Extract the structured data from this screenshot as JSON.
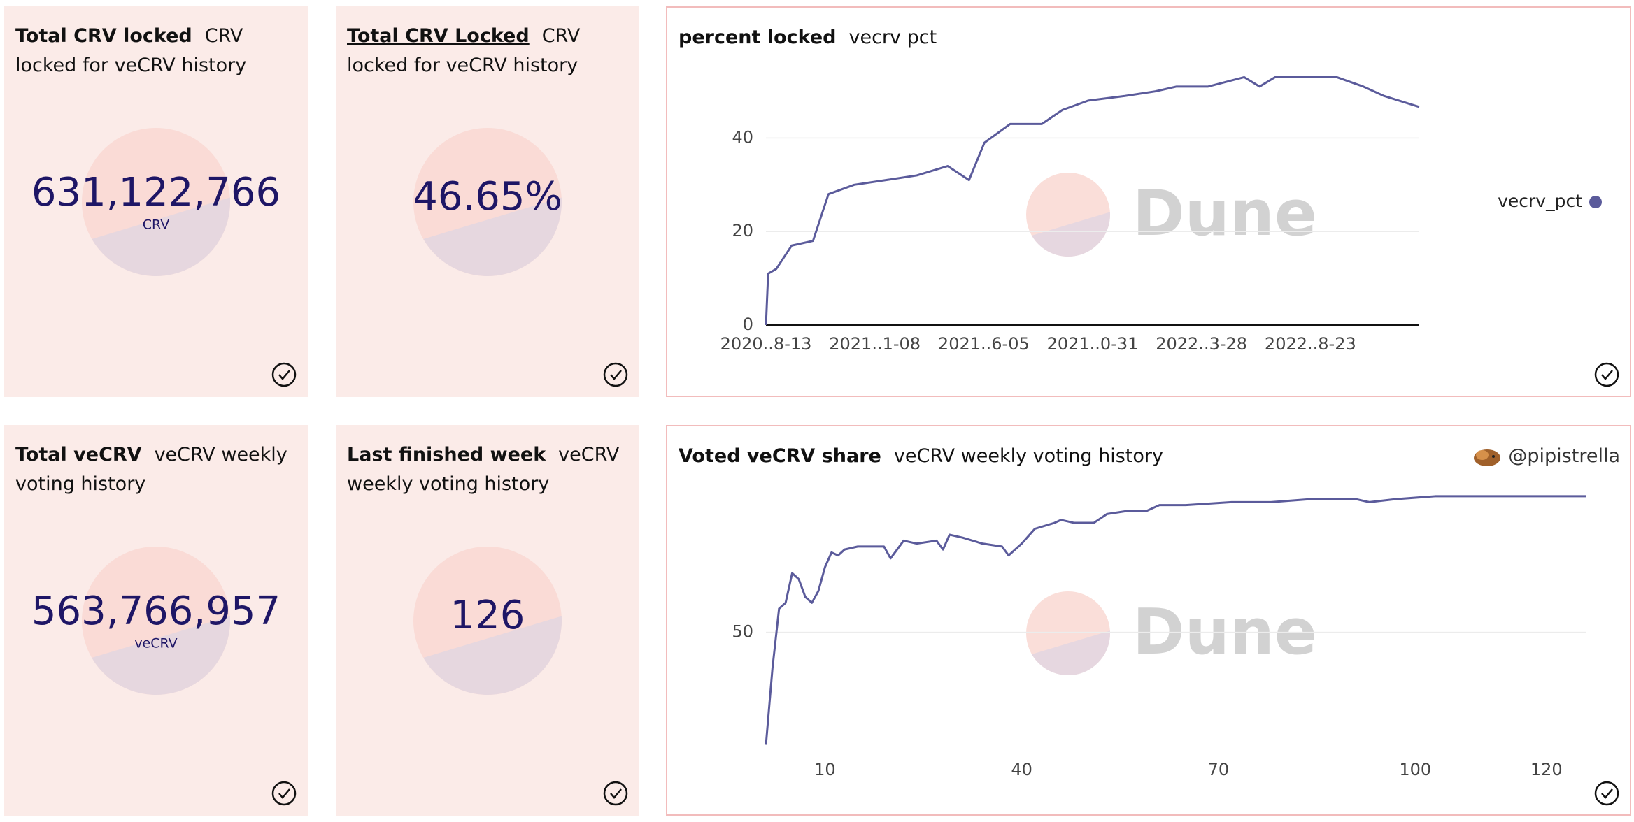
{
  "watermark": "Dune",
  "counters": [
    {
      "title": "Total CRV locked",
      "subtitle": "CRV locked for veCRV history",
      "value": "631,122,766",
      "unit": "CRV"
    },
    {
      "title": "Total CRV Locked",
      "subtitle": "CRV locked for veCRV history",
      "value": "46.65%",
      "underline": true
    },
    {
      "title": "Total veCRV",
      "subtitle": "veCRV weekly voting history",
      "value": "563,766,957",
      "unit": "veCRV"
    },
    {
      "title": "Last finished week",
      "subtitle": "veCRV weekly voting history",
      "value": "126"
    }
  ],
  "chart_data": [
    {
      "type": "line",
      "title": "percent locked",
      "subtitle": "vecrv pct",
      "x": [
        "2020-08-13",
        "2020-08-16",
        "2020-08-27",
        "2020-09-17",
        "2020-10-16",
        "2020-11-06",
        "2020-12-11",
        "2021-01-23",
        "2021-03-06",
        "2021-04-17",
        "2021-05-16",
        "2021-06-06",
        "2021-07-11",
        "2021-08-23",
        "2021-09-20",
        "2021-10-25",
        "2021-12-14",
        "2022-01-25",
        "2022-02-22",
        "2022-04-06",
        "2022-05-25",
        "2022-06-15",
        "2022-07-06",
        "2022-08-24",
        "2022-09-28",
        "2022-11-03",
        "2022-12-01",
        "2023-01-18"
      ],
      "series": [
        {
          "name": "vecrv_pct",
          "color": "#5b5b9b",
          "values": [
            0,
            11,
            12,
            17,
            18,
            28,
            30,
            31,
            32,
            34,
            31,
            39,
            43,
            43,
            46,
            48,
            49,
            50,
            51,
            51,
            53,
            51,
            53,
            53,
            53,
            51,
            49,
            46.65
          ]
        }
      ],
      "xlim": [
        "2020-08-13",
        "2023-01-18"
      ],
      "xticks": [
        {
          "value": "2020-08-13",
          "label": "2020..8-13"
        },
        {
          "value": "2021-01-08",
          "label": "2021..1-08"
        },
        {
          "value": "2021-06-05",
          "label": "2021..6-05"
        },
        {
          "value": "2021-10-31",
          "label": "2021..0-31"
        },
        {
          "value": "2022-03-28",
          "label": "2022..3-28"
        },
        {
          "value": "2022-08-23",
          "label": "2022..8-23"
        }
      ],
      "ylim": [
        0,
        58
      ],
      "yticks": [
        0,
        20,
        40
      ],
      "grid": true,
      "baseline": true,
      "legend": "right"
    },
    {
      "type": "line",
      "title": "Voted veCRV share",
      "subtitle": "veCRV weekly voting history",
      "author": "@pipistrella",
      "x": [
        1,
        2,
        3,
        4,
        5,
        6,
        7,
        8,
        9,
        10,
        11,
        12,
        13,
        15,
        18,
        19,
        20,
        22,
        24,
        27,
        28,
        29,
        31,
        34,
        37,
        38,
        40,
        42,
        45,
        46,
        48,
        51,
        53,
        56,
        59,
        61,
        65,
        72,
        78,
        84,
        91,
        93,
        97,
        103,
        110,
        116,
        121,
        123,
        126
      ],
      "series": [
        {
          "color": "#5b5b9b",
          "values": [
            12,
            38,
            58,
            60,
            70,
            68,
            62,
            60,
            64,
            72,
            77,
            76,
            78,
            79,
            79,
            79,
            75,
            81,
            80,
            81,
            78,
            83,
            82,
            80,
            79,
            76,
            80,
            85,
            87,
            88,
            87,
            87,
            90,
            91,
            91,
            93,
            93,
            94,
            94,
            95,
            95,
            94,
            95,
            96,
            96,
            96,
            96,
            96,
            96
          ]
        }
      ],
      "xlim": [
        1,
        126
      ],
      "xticks": [
        10,
        40,
        70,
        100,
        120
      ],
      "ylim": [
        10,
        100
      ],
      "yticks": [
        50
      ],
      "grid": true
    }
  ]
}
